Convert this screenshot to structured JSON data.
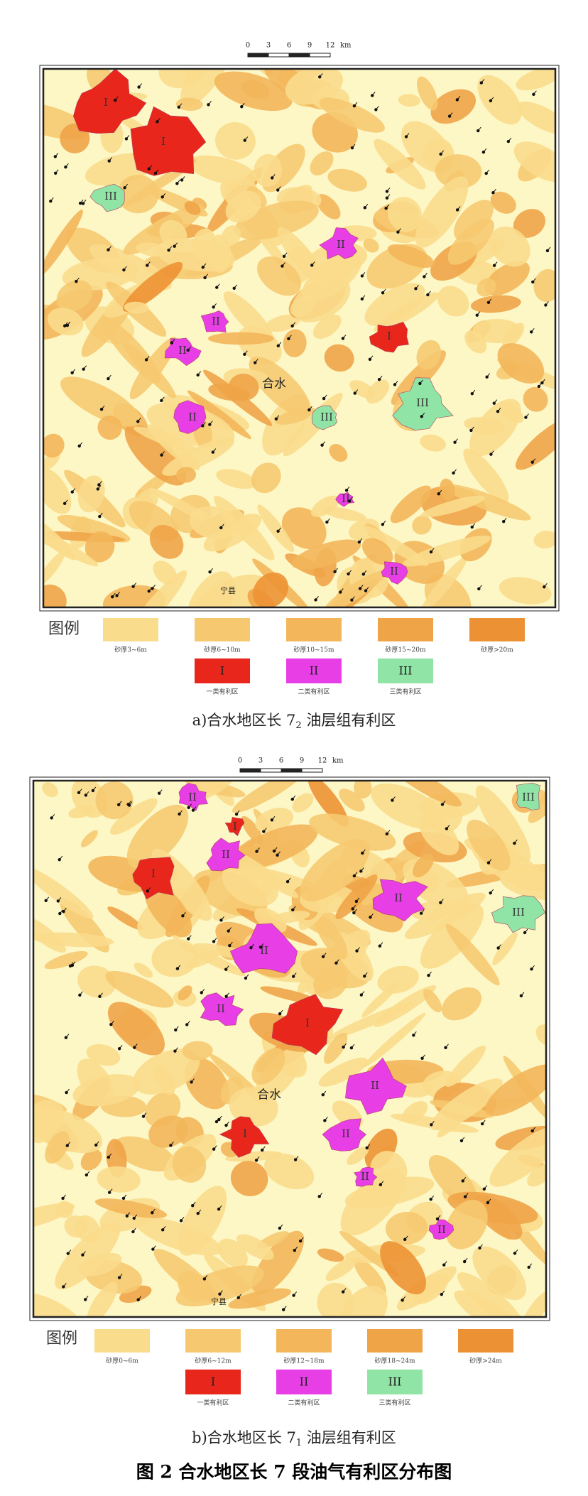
{
  "figure_a": {
    "scale_bar": {
      "ticks": [
        0,
        3,
        6,
        9,
        12
      ],
      "unit": "km"
    },
    "places": [
      "合水",
      "宁县"
    ],
    "zones": [
      "I",
      "I",
      "I",
      "III",
      "III",
      "III",
      "II",
      "II",
      "II",
      "II",
      "II",
      "II"
    ],
    "legend": {
      "title": "图例",
      "sand_classes": [
        "砂厚3~6m",
        "砂厚6~10m",
        "砂厚10~15m",
        "砂厚15~20m",
        "砂厚>20m"
      ],
      "zone_classes": [
        {
          "numeral": "I",
          "label": "一类有利区"
        },
        {
          "numeral": "II",
          "label": "二类有利区"
        },
        {
          "numeral": "III",
          "label": "三类有利区"
        }
      ]
    },
    "caption": {
      "prefix": "a)合水地区长 7",
      "subscript": "2",
      "suffix": " 油层组有利区"
    }
  },
  "figure_b": {
    "scale_bar": {
      "ticks": [
        0,
        3,
        6,
        9,
        12
      ],
      "unit": "km"
    },
    "places": [
      "合水",
      "宁县"
    ],
    "zones": [
      "II",
      "I",
      "II",
      "I",
      "II",
      "III",
      "III",
      "II",
      "II",
      "I",
      "II",
      "II",
      "I",
      "II",
      "II"
    ],
    "legend": {
      "title": "图例",
      "sand_classes": [
        "砂厚0~6m",
        "砂厚6~12m",
        "砂厚12~18m",
        "砂厚18~24m",
        "砂厚>24m"
      ],
      "zone_classes": [
        {
          "numeral": "I",
          "label": "一类有利区"
        },
        {
          "numeral": "II",
          "label": "二类有利区"
        },
        {
          "numeral": "III",
          "label": "三类有利区"
        }
      ]
    },
    "caption": {
      "prefix": "b)合水地区长 7",
      "subscript": "1",
      "suffix": " 油层组有利区"
    }
  },
  "figure_title": "图 2  合水地区长 7 段油气有利区分布图"
}
